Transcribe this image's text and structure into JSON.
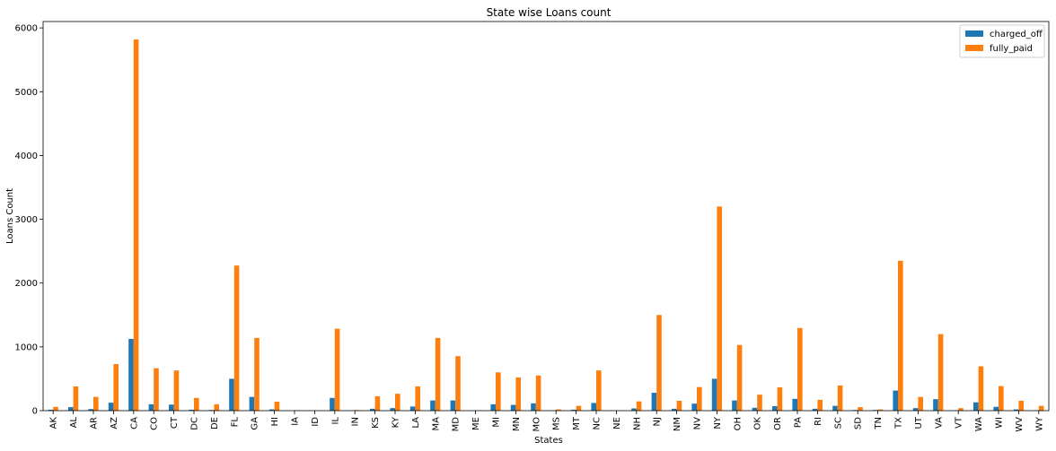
{
  "chart_data": {
    "type": "bar",
    "title": "State wise Loans count",
    "xlabel": "States",
    "ylabel": "Loans Count",
    "ylim": [
      0,
      6100
    ],
    "yticks": [
      0,
      1000,
      2000,
      3000,
      4000,
      5000,
      6000
    ],
    "grid": false,
    "legend_position": "top-right",
    "categories": [
      "AK",
      "AL",
      "AR",
      "AZ",
      "CA",
      "CO",
      "CT",
      "DC",
      "DE",
      "FL",
      "GA",
      "HI",
      "IA",
      "ID",
      "IL",
      "IN",
      "KS",
      "KY",
      "LA",
      "MA",
      "MD",
      "ME",
      "MI",
      "MN",
      "MO",
      "MS",
      "MT",
      "NC",
      "NE",
      "NH",
      "NJ",
      "NM",
      "NV",
      "NY",
      "OH",
      "OK",
      "OR",
      "PA",
      "RI",
      "SC",
      "SD",
      "TN",
      "TX",
      "UT",
      "VA",
      "VT",
      "WA",
      "WI",
      "WV",
      "WY"
    ],
    "series": [
      {
        "name": "charged_off",
        "color": "#1f77b4",
        "values": [
          15,
          55,
          25,
          125,
          1125,
          100,
          95,
          15,
          10,
          500,
          215,
          20,
          0,
          0,
          200,
          5,
          30,
          40,
          65,
          160,
          160,
          0,
          100,
          90,
          115,
          5,
          15,
          120,
          0,
          35,
          280,
          30,
          110,
          500,
          160,
          45,
          70,
          185,
          30,
          75,
          10,
          10,
          315,
          40,
          180,
          5,
          130,
          60,
          20,
          5
        ]
      },
      {
        "name": "fully_paid",
        "color": "#ff7f0e",
        "values": [
          60,
          380,
          215,
          730,
          5820,
          665,
          630,
          200,
          100,
          2275,
          1140,
          140,
          5,
          5,
          1285,
          10,
          225,
          265,
          380,
          1140,
          855,
          3,
          600,
          520,
          550,
          20,
          75,
          630,
          3,
          145,
          1500,
          155,
          370,
          3200,
          1030,
          250,
          365,
          1295,
          170,
          395,
          55,
          20,
          2350,
          215,
          1200,
          40,
          695,
          385,
          155,
          75
        ]
      }
    ]
  }
}
